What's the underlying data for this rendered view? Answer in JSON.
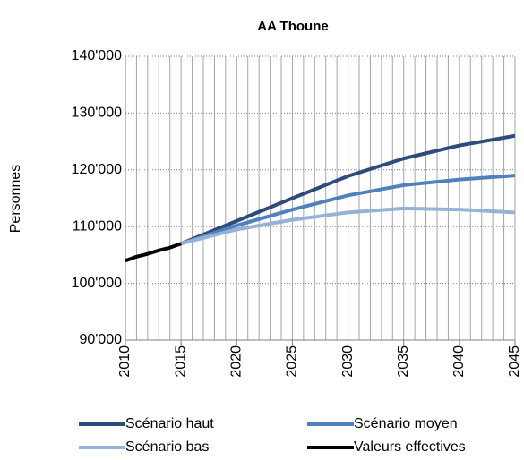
{
  "chart_data": {
    "type": "line",
    "title": "AA Thoune",
    "ylabel": "Personnes",
    "x": [
      2010,
      2011,
      2012,
      2013,
      2014,
      2015,
      2020,
      2025,
      2030,
      2035,
      2040,
      2045
    ],
    "series": [
      {
        "name": "Scénario haut",
        "color": "#2f4b7c",
        "values": [
          null,
          null,
          null,
          null,
          null,
          107000,
          111000,
          115000,
          118900,
          122000,
          124300,
          126000
        ]
      },
      {
        "name": "Scénario moyen",
        "color": "#4f81bd",
        "values": [
          null,
          null,
          null,
          null,
          null,
          107000,
          110200,
          113000,
          115500,
          117300,
          118300,
          119000
        ]
      },
      {
        "name": "Scénario bas",
        "color": "#95b3d7",
        "values": [
          null,
          null,
          null,
          null,
          null,
          107000,
          109500,
          111200,
          112500,
          113200,
          113000,
          112500
        ]
      },
      {
        "name": "Valeurs effectives",
        "color": "#000000",
        "values": [
          104000,
          104700,
          105200,
          105800,
          106300,
          107000,
          null,
          null,
          null,
          null,
          null,
          null
        ]
      }
    ],
    "xlim": [
      2010,
      2045
    ],
    "xticks": [
      2010,
      2015,
      2020,
      2025,
      2030,
      2035,
      2040,
      2045
    ],
    "x_minor_ticks": [
      2010,
      2011,
      2012,
      2013,
      2014,
      2015,
      2016,
      2017,
      2018,
      2019,
      2020,
      2021,
      2022,
      2023,
      2024,
      2025,
      2026,
      2027,
      2028,
      2029,
      2030,
      2031,
      2032,
      2033,
      2034,
      2035,
      2036,
      2037,
      2038,
      2039,
      2040,
      2041,
      2042,
      2043,
      2044,
      2045
    ],
    "ylim": [
      90000,
      140000
    ],
    "yticks": [
      {
        "value": 90000,
        "label": "90'000"
      },
      {
        "value": 100000,
        "label": "100'000"
      },
      {
        "value": 110000,
        "label": "110'000"
      },
      {
        "value": 120000,
        "label": "120'000"
      },
      {
        "value": 130000,
        "label": "130'000"
      },
      {
        "value": 140000,
        "label": "140'000"
      }
    ],
    "grid": true,
    "legend": "bottom"
  }
}
